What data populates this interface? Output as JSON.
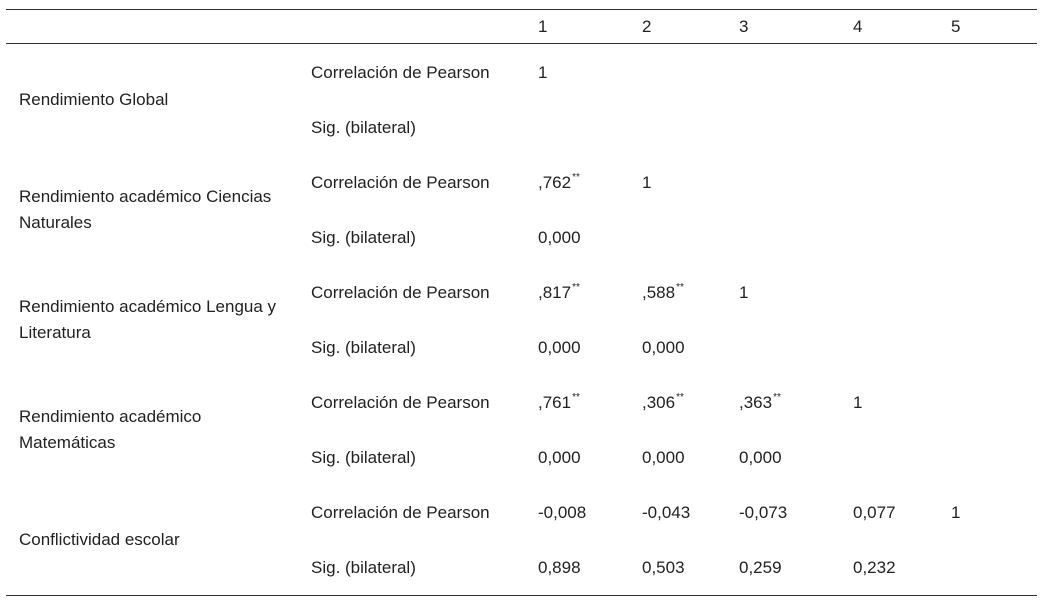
{
  "header": {
    "columns": [
      "1",
      "2",
      "3",
      "4",
      "5"
    ]
  },
  "rows": [
    {
      "variable": "Rendimiento Global",
      "pearson_label": "Correlación de Pearson",
      "sig_label": "Sig. (bilateral)",
      "pearson": [
        {
          "v": "1",
          "s": ""
        }
      ],
      "sig": []
    },
    {
      "variable": "Rendimiento académico Ciencias Naturales",
      "pearson_label": "Correlación de Pearson",
      "sig_label": "Sig. (bilateral)",
      "pearson": [
        {
          "v": ",762",
          "s": "**"
        },
        {
          "v": "1",
          "s": ""
        }
      ],
      "sig": [
        "0,000"
      ]
    },
    {
      "variable": "Rendimiento académico Lengua y Literatura",
      "pearson_label": "Correlación de Pearson",
      "sig_label": "Sig. (bilateral)",
      "pearson": [
        {
          "v": ",817",
          "s": "**"
        },
        {
          "v": ",588",
          "s": "**"
        },
        {
          "v": "1",
          "s": ""
        }
      ],
      "sig": [
        "0,000",
        "0,000"
      ]
    },
    {
      "variable": "Rendimiento académico Matemáticas",
      "pearson_label": "Correlación de Pearson",
      "sig_label": "Sig. (bilateral)",
      "pearson": [
        {
          "v": ",761",
          "s": "**"
        },
        {
          "v": ",306",
          "s": "**"
        },
        {
          "v": ",363",
          "s": "**"
        },
        {
          "v": "1",
          "s": ""
        }
      ],
      "sig": [
        "0,000",
        "0,000",
        "0,000"
      ]
    },
    {
      "variable": "Conflictividad escolar",
      "pearson_label": "Correlación de Pearson",
      "sig_label": "Sig. (bilateral)",
      "pearson": [
        {
          "v": "-0,008",
          "s": ""
        },
        {
          "v": "-0,043",
          "s": ""
        },
        {
          "v": "-0,073",
          "s": ""
        },
        {
          "v": "0,077",
          "s": ""
        },
        {
          "v": "1",
          "s": ""
        }
      ],
      "sig": [
        "0,898",
        "0,503",
        "0,259",
        "0,232"
      ]
    }
  ]
}
